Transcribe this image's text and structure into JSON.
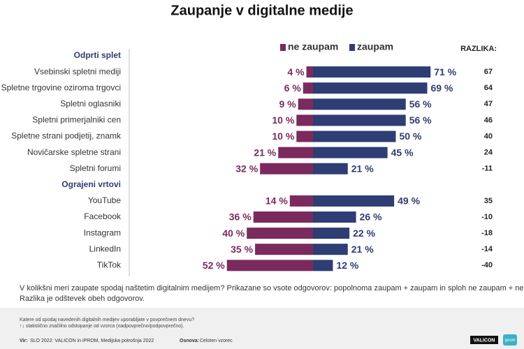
{
  "chart_data": {
    "type": "diverging_bar",
    "title": "Zaupanje v digitalne medije",
    "series": [
      {
        "name": "ne zaupam",
        "color": "#7b2a5e"
      },
      {
        "name": "zaupam",
        "color": "#2e3d73"
      }
    ],
    "difference_label": "RAZLIKA:",
    "groups": [
      {
        "name": "Odprti splet",
        "categories": [
          "Vsebinski spletni mediji",
          "Spletne trgovine oziroma trgovci",
          "Spletni oglasniki",
          "Spletni primerjalniki cen",
          "Spletne strani podjetij, znamk",
          "Novičarske spletne strani",
          "Spletni forumi"
        ],
        "values": [
          [
            4,
            6,
            9,
            10,
            10,
            21,
            32
          ],
          [
            71,
            69,
            56,
            56,
            50,
            45,
            21
          ]
        ],
        "value_labels": [
          [
            "4 %",
            "6 %",
            "9 %",
            "10 %",
            "10 %",
            "21 %",
            "32 %"
          ],
          [
            "71 %",
            "69 %",
            "56 %",
            "56 %",
            "50 %",
            "45 %",
            "21 %"
          ]
        ],
        "differences": [
          67,
          64,
          47,
          46,
          40,
          24,
          -11
        ]
      },
      {
        "name": "Ograjeni vrtovi",
        "categories": [
          "YouTube",
          "Facebook",
          "Instagram",
          "LinkedIn",
          "TikTok"
        ],
        "values": [
          [
            14,
            36,
            40,
            35,
            52
          ],
          [
            49,
            26,
            22,
            21,
            12
          ]
        ],
        "value_labels": [
          [
            "14 %",
            "36 %",
            "40 %",
            "35 %",
            "52 %"
          ],
          [
            "49 %",
            "26 %",
            "22 %",
            "21 %",
            "12 %"
          ]
        ],
        "differences": [
          35,
          -10,
          -18,
          -14,
          -40
        ]
      }
    ]
  },
  "note": [
    "V kolikšni meri zaupate spodaj naštetim digitalnim medijem? Prikazane so vsote odgovorov: popolnoma zaupam + zaupam in sploh ne zaupam + ne zaupam.",
    "Razlika je odštevek obeh odgovorov."
  ],
  "footer": {
    "lines": [
      "Katere od spodaj navedenih digitalnih medijev uporabljate v povprečnem dnevu?",
      "↑↓ statistično značilno odstopanje od vzorca (nadpovprečno/podpovprečno)."
    ],
    "source": {
      "label": "Vir:",
      "text": "SLO 2022: VALICON in iPROM, Medijska potrošnja 2022"
    },
    "base": {
      "label": "Osnova:",
      "text": "Celoten vzorec"
    },
    "logos": [
      "VALICON",
      "iprom"
    ]
  }
}
